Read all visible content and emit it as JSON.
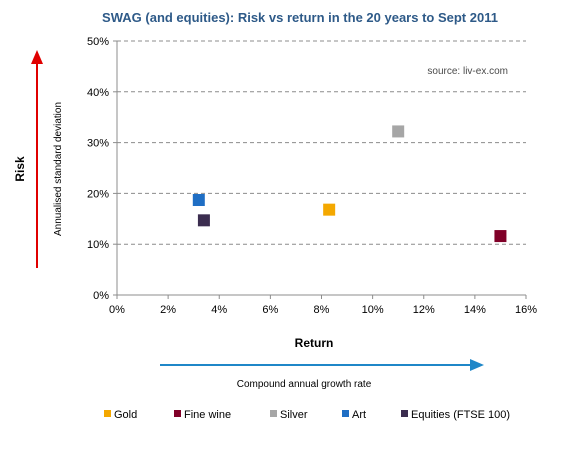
{
  "chart_data": {
    "type": "scatter",
    "title": "SWAG (and equities): Risk vs return in the 20 years to Sept 2011",
    "source_note": "source: liv-ex.com",
    "xlabel": "Return",
    "xlabel_sub": "Compound annual growth rate",
    "ylabel": "Risk",
    "ylabel_sub": "Annualised standard deviation",
    "xlim": [
      0,
      16
    ],
    "ylim": [
      0,
      50
    ],
    "x_ticks": [
      0,
      2,
      4,
      6,
      8,
      10,
      12,
      14,
      16
    ],
    "y_ticks": [
      0,
      10,
      20,
      30,
      40,
      50
    ],
    "x_tick_labels": [
      "0%",
      "2%",
      "4%",
      "6%",
      "8%",
      "10%",
      "12%",
      "14%",
      "16%"
    ],
    "y_tick_labels": [
      "0%",
      "10%",
      "20%",
      "30%",
      "40%",
      "50%"
    ],
    "grid": "horizontal dashed",
    "legend_position": "bottom",
    "series": [
      {
        "name": "Gold",
        "color": "#f4a800",
        "x": 8.3,
        "y": 16.8
      },
      {
        "name": "Fine wine",
        "color": "#800028",
        "x": 15.0,
        "y": 11.6
      },
      {
        "name": "Silver",
        "color": "#a6a6a6",
        "x": 11.0,
        "y": 32.2
      },
      {
        "name": "Art",
        "color": "#1f6ec4",
        "x": 3.2,
        "y": 18.7
      },
      {
        "name": "Equities (FTSE 100)",
        "color": "#3b2d4f",
        "x": 3.4,
        "y": 14.7
      }
    ],
    "arrow_colors": {
      "risk": "#e00000",
      "return": "#1f87c8"
    }
  }
}
